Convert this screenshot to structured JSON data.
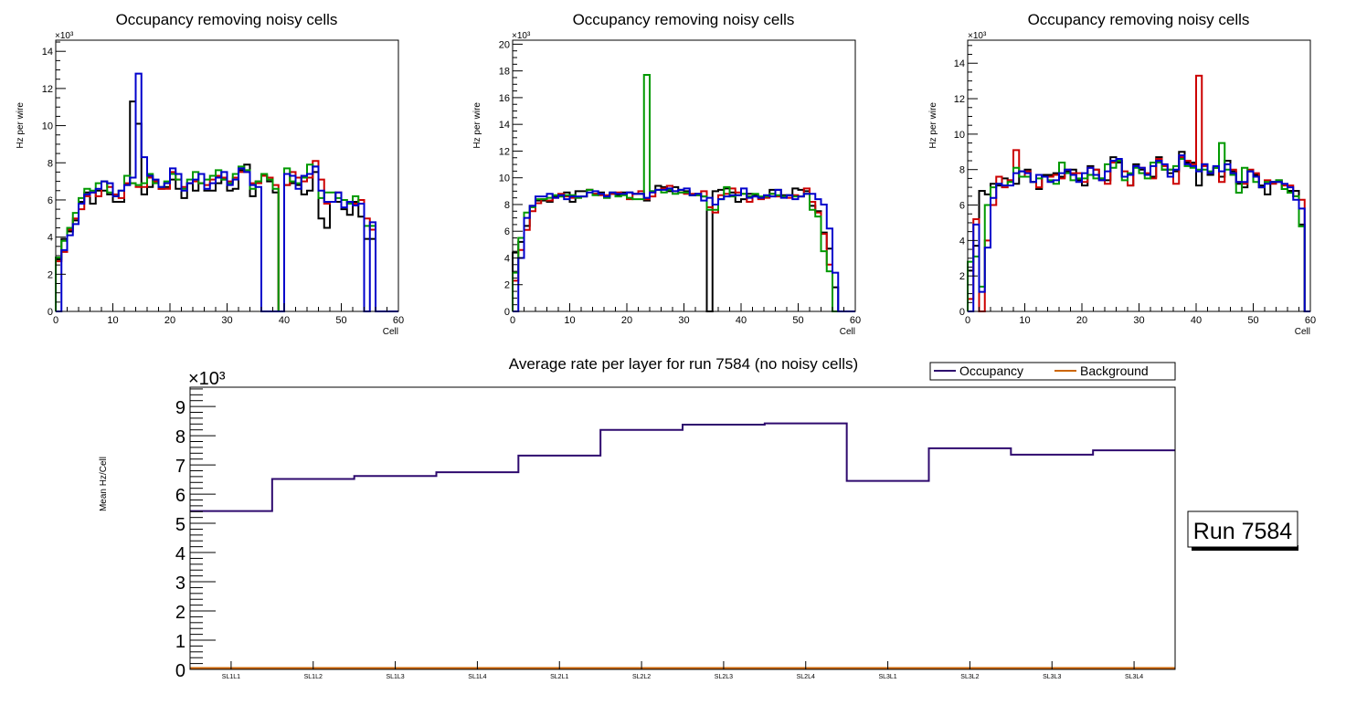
{
  "chart_data": [
    {
      "type": "line",
      "title": "Occupancy removing noisy cells",
      "xlabel": "Cell",
      "ylabel": "Hz per wire",
      "yexponent": "×10³",
      "xlim": [
        0,
        60
      ],
      "ylim": [
        0,
        14.6
      ],
      "xticks": [
        0,
        10,
        20,
        30,
        40,
        50,
        60
      ],
      "yticks": [
        0,
        2,
        4,
        6,
        8,
        10,
        12,
        14
      ],
      "series": [
        {
          "name": "black",
          "color": "#000000",
          "values": [
            2.8,
            3.9,
            4.3,
            4.9,
            5.9,
            6.4,
            5.8,
            6.5,
            6.5,
            6.3,
            5.9,
            5.9,
            6.8,
            11.3,
            10.1,
            6.3,
            6.7,
            7.0,
            6.6,
            6.7,
            7.1,
            6.6,
            6.1,
            6.9,
            6.5,
            6.9,
            6.5,
            6.5,
            6.9,
            7.1,
            6.5,
            6.6,
            7.6,
            7.9,
            6.2,
            7.0,
            7.3,
            7.0,
            6.4,
            0,
            6.8,
            6.9,
            6.8,
            6.3,
            6.5,
            7.5,
            5.0,
            4.5,
            5.9,
            5.9,
            5.5,
            5.2,
            5.9,
            5.1,
            3.9,
            3.9,
            0,
            0,
            0,
            0
          ]
        },
        {
          "name": "red",
          "color": "#cc0000",
          "values": [
            2.7,
            3.2,
            4.4,
            5.0,
            5.5,
            6.2,
            6.4,
            6.2,
            7.0,
            6.7,
            6.3,
            6.1,
            6.9,
            6.9,
            6.7,
            6.7,
            7.2,
            7.0,
            6.6,
            6.6,
            7.5,
            7.1,
            6.7,
            6.9,
            7.0,
            6.9,
            6.8,
            7.1,
            7.3,
            7.2,
            7.0,
            7.2,
            7.5,
            7.5,
            6.9,
            6.9,
            7.3,
            7.2,
            6.8,
            0,
            6.8,
            7.5,
            7.2,
            7.0,
            7.2,
            8.1,
            7.1,
            5.8,
            5.9,
            6.4,
            6.0,
            5.9,
            5.8,
            6.0,
            5.0,
            4.4,
            0,
            0,
            0,
            0
          ]
        },
        {
          "name": "green",
          "color": "#009900",
          "values": [
            2.9,
            3.8,
            4.5,
            5.3,
            6.1,
            6.6,
            6.5,
            6.9,
            7.0,
            6.4,
            6.2,
            6.5,
            7.3,
            6.9,
            6.8,
            6.9,
            7.4,
            6.9,
            6.7,
            7.0,
            7.4,
            7.1,
            6.6,
            7.1,
            7.5,
            6.9,
            7.1,
            7.3,
            7.6,
            7.1,
            6.9,
            7.4,
            7.8,
            7.6,
            6.6,
            7.0,
            7.4,
            7.1,
            6.6,
            0,
            7.7,
            7.0,
            6.9,
            7.2,
            7.9,
            7.8,
            6.1,
            6.4,
            6.4,
            6.1,
            6.0,
            5.8,
            6.2,
            5.8,
            4.6,
            4.6,
            0,
            0,
            0,
            0
          ]
        },
        {
          "name": "blue",
          "color": "#0000cc",
          "values": [
            0,
            3.3,
            4.1,
            4.7,
            5.8,
            6.3,
            6.4,
            6.6,
            7.0,
            6.9,
            6.2,
            6.5,
            6.8,
            7.2,
            12.8,
            8.3,
            7.3,
            7.1,
            6.7,
            6.9,
            7.7,
            7.4,
            6.5,
            6.9,
            7.1,
            7.4,
            6.6,
            6.9,
            7.2,
            7.5,
            6.8,
            7.1,
            7.7,
            7.5,
            6.8,
            6.7,
            0,
            0,
            0,
            0,
            7.4,
            7.3,
            6.6,
            7.3,
            7.4,
            7.8,
            6.5,
            5.9,
            5.9,
            6.4,
            5.6,
            5.9,
            5.7,
            5.8,
            0,
            4.8,
            0,
            0,
            0,
            0
          ]
        }
      ]
    },
    {
      "type": "line",
      "title": "Occupancy removing noisy cells",
      "xlabel": "Cell",
      "ylabel": "Hz per wire",
      "yexponent": "×10³",
      "xlim": [
        0,
        60
      ],
      "ylim": [
        0,
        20.3
      ],
      "xticks": [
        0,
        10,
        20,
        30,
        40,
        50,
        60
      ],
      "yticks": [
        0,
        2,
        4,
        6,
        8,
        10,
        12,
        14,
        16,
        18,
        20
      ],
      "series": [
        {
          "name": "black",
          "color": "#000000",
          "values": [
            4.4,
            5.2,
            6.4,
            7.9,
            8.3,
            8.3,
            8.2,
            8.6,
            8.6,
            8.9,
            8.2,
            9.0,
            9.0,
            9.1,
            8.8,
            8.9,
            8.5,
            8.8,
            8.7,
            8.9,
            8.9,
            8.8,
            8.8,
            8.3,
            9.0,
            9.4,
            9.3,
            9.0,
            9.3,
            9.1,
            9.0,
            8.7,
            8.8,
            8.6,
            0,
            9.0,
            9.1,
            9.2,
            8.9,
            8.2,
            8.4,
            8.8,
            8.7,
            8.5,
            8.6,
            9.1,
            9.1,
            8.7,
            8.7,
            9.2,
            9.1,
            9.0,
            7.9,
            7.5,
            5.9,
            4.7,
            1.8,
            0,
            0,
            0
          ]
        },
        {
          "name": "red",
          "color": "#cc0000",
          "values": [
            2.3,
            4.6,
            6.1,
            7.5,
            8.1,
            8.4,
            8.3,
            8.5,
            8.8,
            8.6,
            8.5,
            8.5,
            8.6,
            9.1,
            8.8,
            8.7,
            8.7,
            8.8,
            8.9,
            8.8,
            8.4,
            8.8,
            9.0,
            8.4,
            8.6,
            9.1,
            9.2,
            9.4,
            9.0,
            8.9,
            8.8,
            8.8,
            8.7,
            9.0,
            7.8,
            7.4,
            8.7,
            8.8,
            9.2,
            8.9,
            8.8,
            8.2,
            8.6,
            8.4,
            8.5,
            8.8,
            8.6,
            8.6,
            8.5,
            8.7,
            8.6,
            9.2,
            8.2,
            7.4,
            5.8,
            3.5,
            0,
            0,
            0,
            0
          ]
        },
        {
          "name": "green",
          "color": "#009900",
          "values": [
            2.9,
            5.5,
            7.4,
            7.8,
            8.4,
            8.4,
            8.5,
            8.7,
            8.6,
            8.7,
            8.7,
            8.5,
            8.6,
            9.1,
            8.7,
            8.8,
            8.5,
            8.9,
            8.6,
            8.7,
            8.5,
            8.4,
            8.4,
            17.7,
            9.0,
            9.1,
            8.9,
            9.1,
            8.8,
            8.9,
            8.9,
            8.7,
            8.7,
            8.6,
            7.6,
            7.6,
            8.4,
            9.3,
            8.6,
            8.7,
            8.8,
            8.6,
            8.8,
            8.6,
            8.6,
            8.8,
            8.7,
            8.6,
            8.7,
            8.6,
            8.6,
            8.8,
            7.6,
            7.1,
            4.5,
            3.0,
            0,
            0,
            0,
            0
          ]
        },
        {
          "name": "blue",
          "color": "#0000cc",
          "values": [
            0,
            4.0,
            7.0,
            7.9,
            8.6,
            8.6,
            8.8,
            8.5,
            8.7,
            8.4,
            8.6,
            8.6,
            8.6,
            8.9,
            9.0,
            8.8,
            8.6,
            8.9,
            8.8,
            8.8,
            8.9,
            8.8,
            8.8,
            8.5,
            8.9,
            9.1,
            9.1,
            9.2,
            9.0,
            9.1,
            9.2,
            8.7,
            8.8,
            8.3,
            8.5,
            8.0,
            8.4,
            8.6,
            8.7,
            8.7,
            9.2,
            8.5,
            8.6,
            8.5,
            8.7,
            8.6,
            9.1,
            8.5,
            8.7,
            8.4,
            8.6,
            8.8,
            8.8,
            8.4,
            8.0,
            6.2,
            2.9,
            0,
            0,
            0
          ]
        }
      ]
    },
    {
      "type": "line",
      "title": "Occupancy removing noisy cells",
      "xlabel": "Cell",
      "ylabel": "Hz per wire",
      "yexponent": "×10³",
      "xlim": [
        0,
        60
      ],
      "ylim": [
        0,
        15.3
      ],
      "xticks": [
        0,
        10,
        20,
        30,
        40,
        50,
        60
      ],
      "yticks": [
        0,
        2,
        4,
        6,
        8,
        10,
        12,
        14
      ],
      "series": [
        {
          "name": "black",
          "color": "#000000",
          "values": [
            2.3,
            3.7,
            6.8,
            6.6,
            7.2,
            7.1,
            7.5,
            7.4,
            7.2,
            7.9,
            8.0,
            7.3,
            6.9,
            7.7,
            7.7,
            7.8,
            7.6,
            7.9,
            8.0,
            7.4,
            7.1,
            8.2,
            8.0,
            7.5,
            7.4,
            8.7,
            8.4,
            7.6,
            7.1,
            8.3,
            8.0,
            7.7,
            7.6,
            8.7,
            8.0,
            7.8,
            7.9,
            9.0,
            8.4,
            8.4,
            7.1,
            8.3,
            7.7,
            8.1,
            7.6,
            8.5,
            7.9,
            7.2,
            7.0,
            7.9,
            7.7,
            7.1,
            6.6,
            7.3,
            7.4,
            6.9,
            6.8,
            6.8,
            4.9,
            0
          ]
        },
        {
          "name": "red",
          "color": "#cc0000",
          "values": [
            0.7,
            5.2,
            0,
            4.0,
            6.0,
            7.6,
            7.0,
            7.4,
            9.1,
            7.6,
            7.9,
            7.3,
            7.0,
            7.6,
            7.6,
            7.7,
            7.5,
            8.0,
            7.8,
            7.8,
            7.3,
            8.1,
            8.0,
            7.4,
            7.2,
            8.4,
            8.5,
            7.9,
            7.1,
            8.2,
            8.1,
            7.8,
            7.5,
            8.6,
            8.2,
            8.0,
            7.2,
            8.7,
            8.5,
            8.3,
            13.3,
            8.2,
            7.8,
            8.1,
            7.3,
            8.3,
            8.0,
            7.3,
            7.2,
            8.0,
            7.8,
            7.0,
            7.4,
            7.2,
            7.3,
            7.1,
            7.1,
            6.5,
            6.3,
            0
          ]
        },
        {
          "name": "green",
          "color": "#009900",
          "values": [
            2.8,
            3.1,
            1.4,
            6.0,
            7.0,
            7.2,
            7.1,
            7.3,
            8.1,
            7.6,
            7.6,
            7.3,
            7.5,
            7.6,
            7.4,
            7.2,
            8.4,
            7.8,
            7.4,
            7.5,
            7.5,
            7.7,
            7.5,
            7.5,
            8.3,
            8.1,
            8.5,
            7.4,
            7.8,
            8.1,
            7.8,
            7.5,
            8.4,
            8.4,
            8.0,
            8.0,
            8.2,
            8.6,
            8.2,
            8.1,
            8.0,
            8.0,
            7.9,
            8.1,
            9.5,
            8.0,
            7.7,
            6.7,
            8.1,
            7.9,
            7.3,
            7.0,
            7.3,
            7.3,
            7.4,
            6.9,
            6.7,
            6.5,
            4.8,
            0
          ]
        },
        {
          "name": "blue",
          "color": "#0000cc",
          "values": [
            0,
            4.9,
            1.1,
            3.6,
            6.4,
            7.2,
            7.1,
            7.1,
            7.8,
            7.9,
            7.8,
            7.3,
            7.7,
            7.6,
            7.3,
            7.4,
            7.8,
            8.0,
            7.7,
            7.3,
            7.8,
            8.1,
            7.7,
            7.4,
            7.9,
            8.5,
            8.6,
            7.6,
            7.7,
            8.2,
            8.1,
            7.7,
            8.2,
            8.5,
            8.3,
            7.6,
            8.0,
            8.8,
            8.3,
            8.2,
            7.9,
            8.3,
            7.8,
            8.2,
            7.9,
            8.3,
            7.8,
            7.3,
            7.3,
            7.9,
            7.6,
            7.0,
            7.2,
            7.3,
            7.3,
            7.2,
            7.0,
            6.3,
            5.8,
            0
          ]
        }
      ]
    },
    {
      "type": "line",
      "title": "Average rate per layer for run 7584 (no noisy cells)",
      "xlabel": "",
      "ylabel": "Mean Hz/Cell",
      "yexponent": "×10³",
      "categories": [
        "SL1L1",
        "SL1L2",
        "SL1L3",
        "SL1L4",
        "SL2L1",
        "SL2L2",
        "SL2L3",
        "SL2L4",
        "SL3L1",
        "SL3L2",
        "SL3L3",
        "SL3L4"
      ],
      "ylim": [
        0,
        9.66
      ],
      "yticks": [
        0,
        1,
        2,
        3,
        4,
        5,
        6,
        7,
        8,
        9
      ],
      "legend_position": "top-right",
      "series": [
        {
          "name": "Occupancy",
          "color": "#2e0a6e",
          "values": [
            5.42,
            6.52,
            6.62,
            6.75,
            7.32,
            8.2,
            8.38,
            8.42,
            6.45,
            7.57,
            7.35,
            7.5
          ]
        },
        {
          "name": "Background",
          "color": "#cc6600",
          "values": [
            0.03,
            0.03,
            0.03,
            0.03,
            0.03,
            0.03,
            0.03,
            0.03,
            0.03,
            0.03,
            0.03,
            0.03
          ]
        }
      ]
    }
  ],
  "run_label": "Run 7584"
}
